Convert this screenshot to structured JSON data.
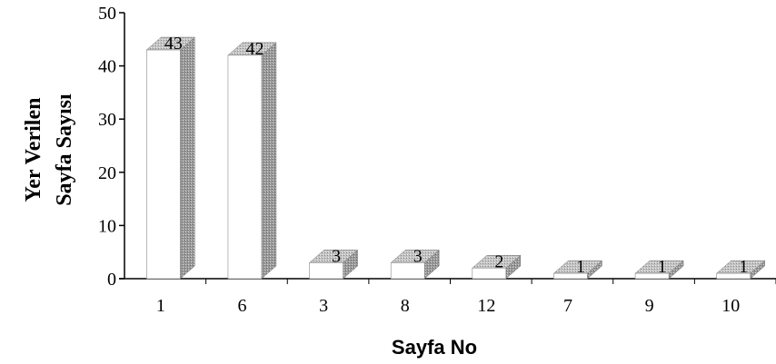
{
  "chart_data": {
    "type": "bar",
    "categories": [
      "1",
      "6",
      "3",
      "8",
      "12",
      "7",
      "9",
      "10"
    ],
    "values": [
      43,
      42,
      3,
      3,
      2,
      1,
      1,
      1
    ],
    "data_labels": [
      "43",
      "42",
      "3",
      "3",
      "2",
      "1",
      "1",
      "1"
    ],
    "ylabel_lines": [
      "Yer Verilen",
      "Sayfa Sayısı"
    ],
    "xlabel": "Sayfa No",
    "ylim": [
      0,
      50
    ],
    "yticks": [
      0,
      10,
      20,
      30,
      40,
      50
    ],
    "grid": false,
    "style": "3d-bar",
    "colors": {
      "bar_front": "#ffffff",
      "bar_side": "#a8a8a8",
      "bar_top": "#c8c8c8",
      "axis": "#000000"
    }
  }
}
